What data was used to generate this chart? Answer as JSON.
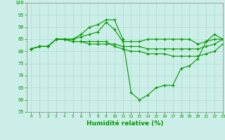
{
  "title": "",
  "xlabel": "Humidité relative (%)",
  "ylabel": "",
  "bg_color": "#cceee8",
  "grid_color": "#aaddcc",
  "line_color": "#009900",
  "marker_color": "#009900",
  "ylim": [
    55,
    100
  ],
  "xlim": [
    -0.5,
    23
  ],
  "yticks": [
    55,
    60,
    65,
    70,
    75,
    80,
    85,
    90,
    95,
    100
  ],
  "xticks": [
    0,
    1,
    2,
    3,
    4,
    5,
    6,
    7,
    8,
    9,
    10,
    11,
    12,
    13,
    14,
    15,
    16,
    17,
    18,
    19,
    20,
    21,
    22,
    23
  ],
  "series": [
    [
      81,
      82,
      82,
      85,
      85,
      85,
      87,
      90,
      91,
      93,
      93,
      85,
      63,
      60,
      62,
      65,
      66,
      66,
      73,
      74,
      77,
      84,
      87,
      85
    ],
    [
      81,
      82,
      82,
      85,
      85,
      85,
      86,
      87,
      88,
      92,
      89,
      84,
      84,
      84,
      85,
      85,
      85,
      85,
      85,
      85,
      83,
      84,
      85,
      85
    ],
    [
      81,
      82,
      82,
      85,
      85,
      84,
      84,
      84,
      84,
      84,
      82,
      81,
      80,
      80,
      79,
      79,
      79,
      78,
      78,
      78,
      78,
      79,
      80,
      83
    ],
    [
      81,
      82,
      82,
      85,
      85,
      84,
      84,
      83,
      83,
      83,
      83,
      82,
      82,
      82,
      81,
      81,
      81,
      81,
      81,
      81,
      81,
      82,
      83,
      85
    ]
  ]
}
